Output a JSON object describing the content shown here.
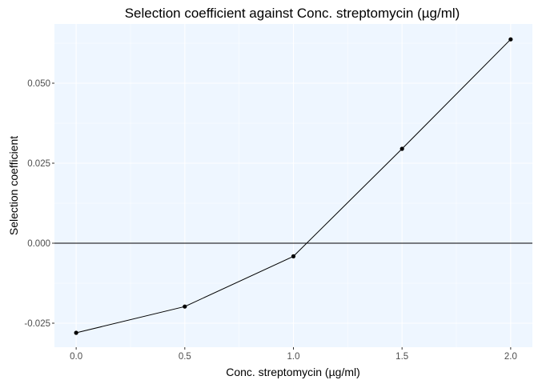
{
  "chart_data": {
    "type": "line",
    "title": "Selection coefficient against Conc. streptomycin (µg/ml)",
    "xlabel": "Conc. streptomycin (µg/ml)",
    "ylabel": "Selection coefficient",
    "x": [
      0.0,
      0.5,
      1.0,
      1.5,
      2.0
    ],
    "series": [
      {
        "values": [
          -0.028,
          -0.0198,
          -0.0041,
          0.0295,
          0.0637
        ]
      }
    ],
    "xlim": [
      -0.1,
      2.1
    ],
    "ylim": [
      -0.0325,
      0.0685
    ],
    "x_ticks": [
      0.0,
      0.5,
      1.0,
      1.5,
      2.0
    ],
    "x_tick_labels": [
      "0.0",
      "0.5",
      "1.0",
      "1.5",
      "2.0"
    ],
    "y_ticks": [
      -0.025,
      0.0,
      0.025,
      0.05
    ],
    "y_tick_labels": [
      "-0.025",
      "0.000",
      "0.025",
      "0.050"
    ],
    "reference_line": {
      "y": 0
    },
    "grid": true,
    "legend": "none",
    "colors": {
      "panel_background": "#EEF6FF",
      "grid": "#FFFFFF",
      "line": "#000000",
      "point": "#000000",
      "tick_text": "#4D4D4D"
    }
  }
}
